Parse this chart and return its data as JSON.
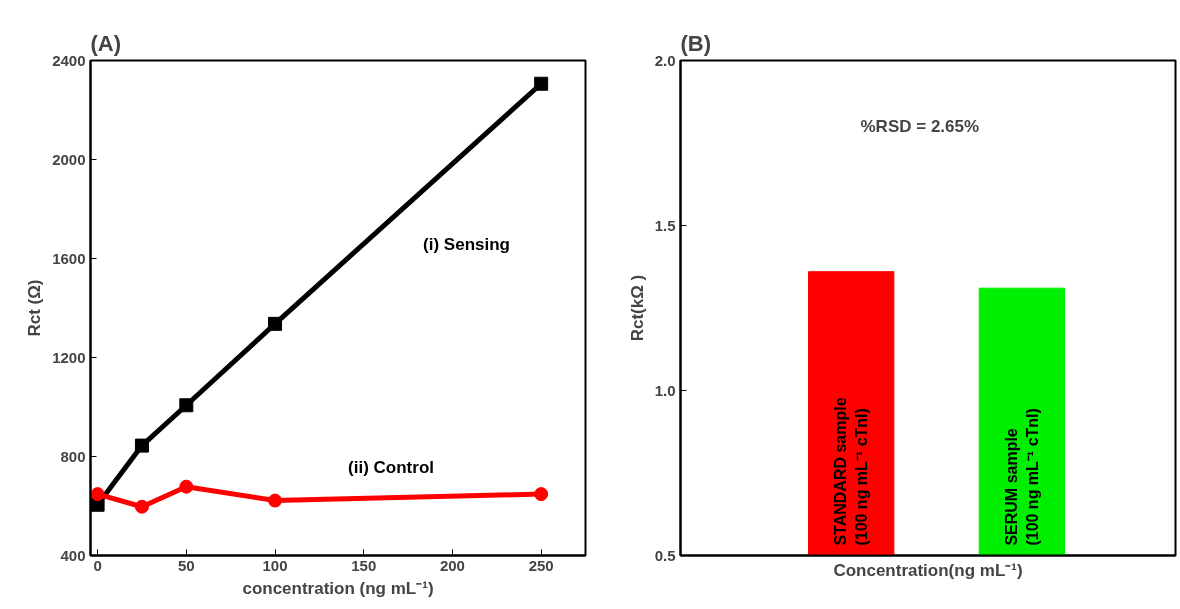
{
  "chart_data": [
    {
      "type": "line",
      "title": "(A)",
      "xlabel": "concentration (ng mL⁻¹)",
      "ylabel": "Rct (Ω)",
      "x": [
        0,
        25,
        50,
        100,
        250
      ],
      "series": [
        {
          "name": "(i) Sensing",
          "color": "#000000",
          "marker": "square",
          "values": [
            605,
            844,
            1007,
            1336,
            2306
          ]
        },
        {
          "name": "(ii) Control",
          "color": "#ff0000",
          "marker": "circle",
          "values": [
            648,
            597,
            678,
            622,
            648
          ]
        }
      ],
      "xlim": [
        -4,
        275
      ],
      "ylim": [
        400,
        2400
      ],
      "xticks": [
        0,
        50,
        100,
        150,
        200,
        250
      ],
      "yticks": [
        400,
        800,
        1200,
        1600,
        2000,
        2400
      ],
      "grid": false,
      "line_style": "solid"
    },
    {
      "type": "bar",
      "title": "(B)",
      "xlabel": "Concentration(ng mL⁻¹)",
      "ylabel": "Rct(kΩ )",
      "categories": [
        "STANDARD sample\n(100 ng mL⁻¹ cTnI)",
        "SERUM sample\n(100 ng mL⁻¹ cTnI)"
      ],
      "values": [
        1.36,
        1.31
      ],
      "colors": [
        "#ff0000",
        "#00ee00"
      ],
      "ylim": [
        0.5,
        2.0
      ],
      "yticks": [
        {
          "value": 0.5,
          "label": "0.5"
        },
        {
          "value": 1.0,
          "label": "1.0"
        },
        {
          "value": 1.5,
          "label": "1.5"
        },
        {
          "value": 2.0,
          "label": "2.0"
        }
      ],
      "annotations": [
        "%RSD = 2.65%"
      ],
      "grid": false
    }
  ]
}
